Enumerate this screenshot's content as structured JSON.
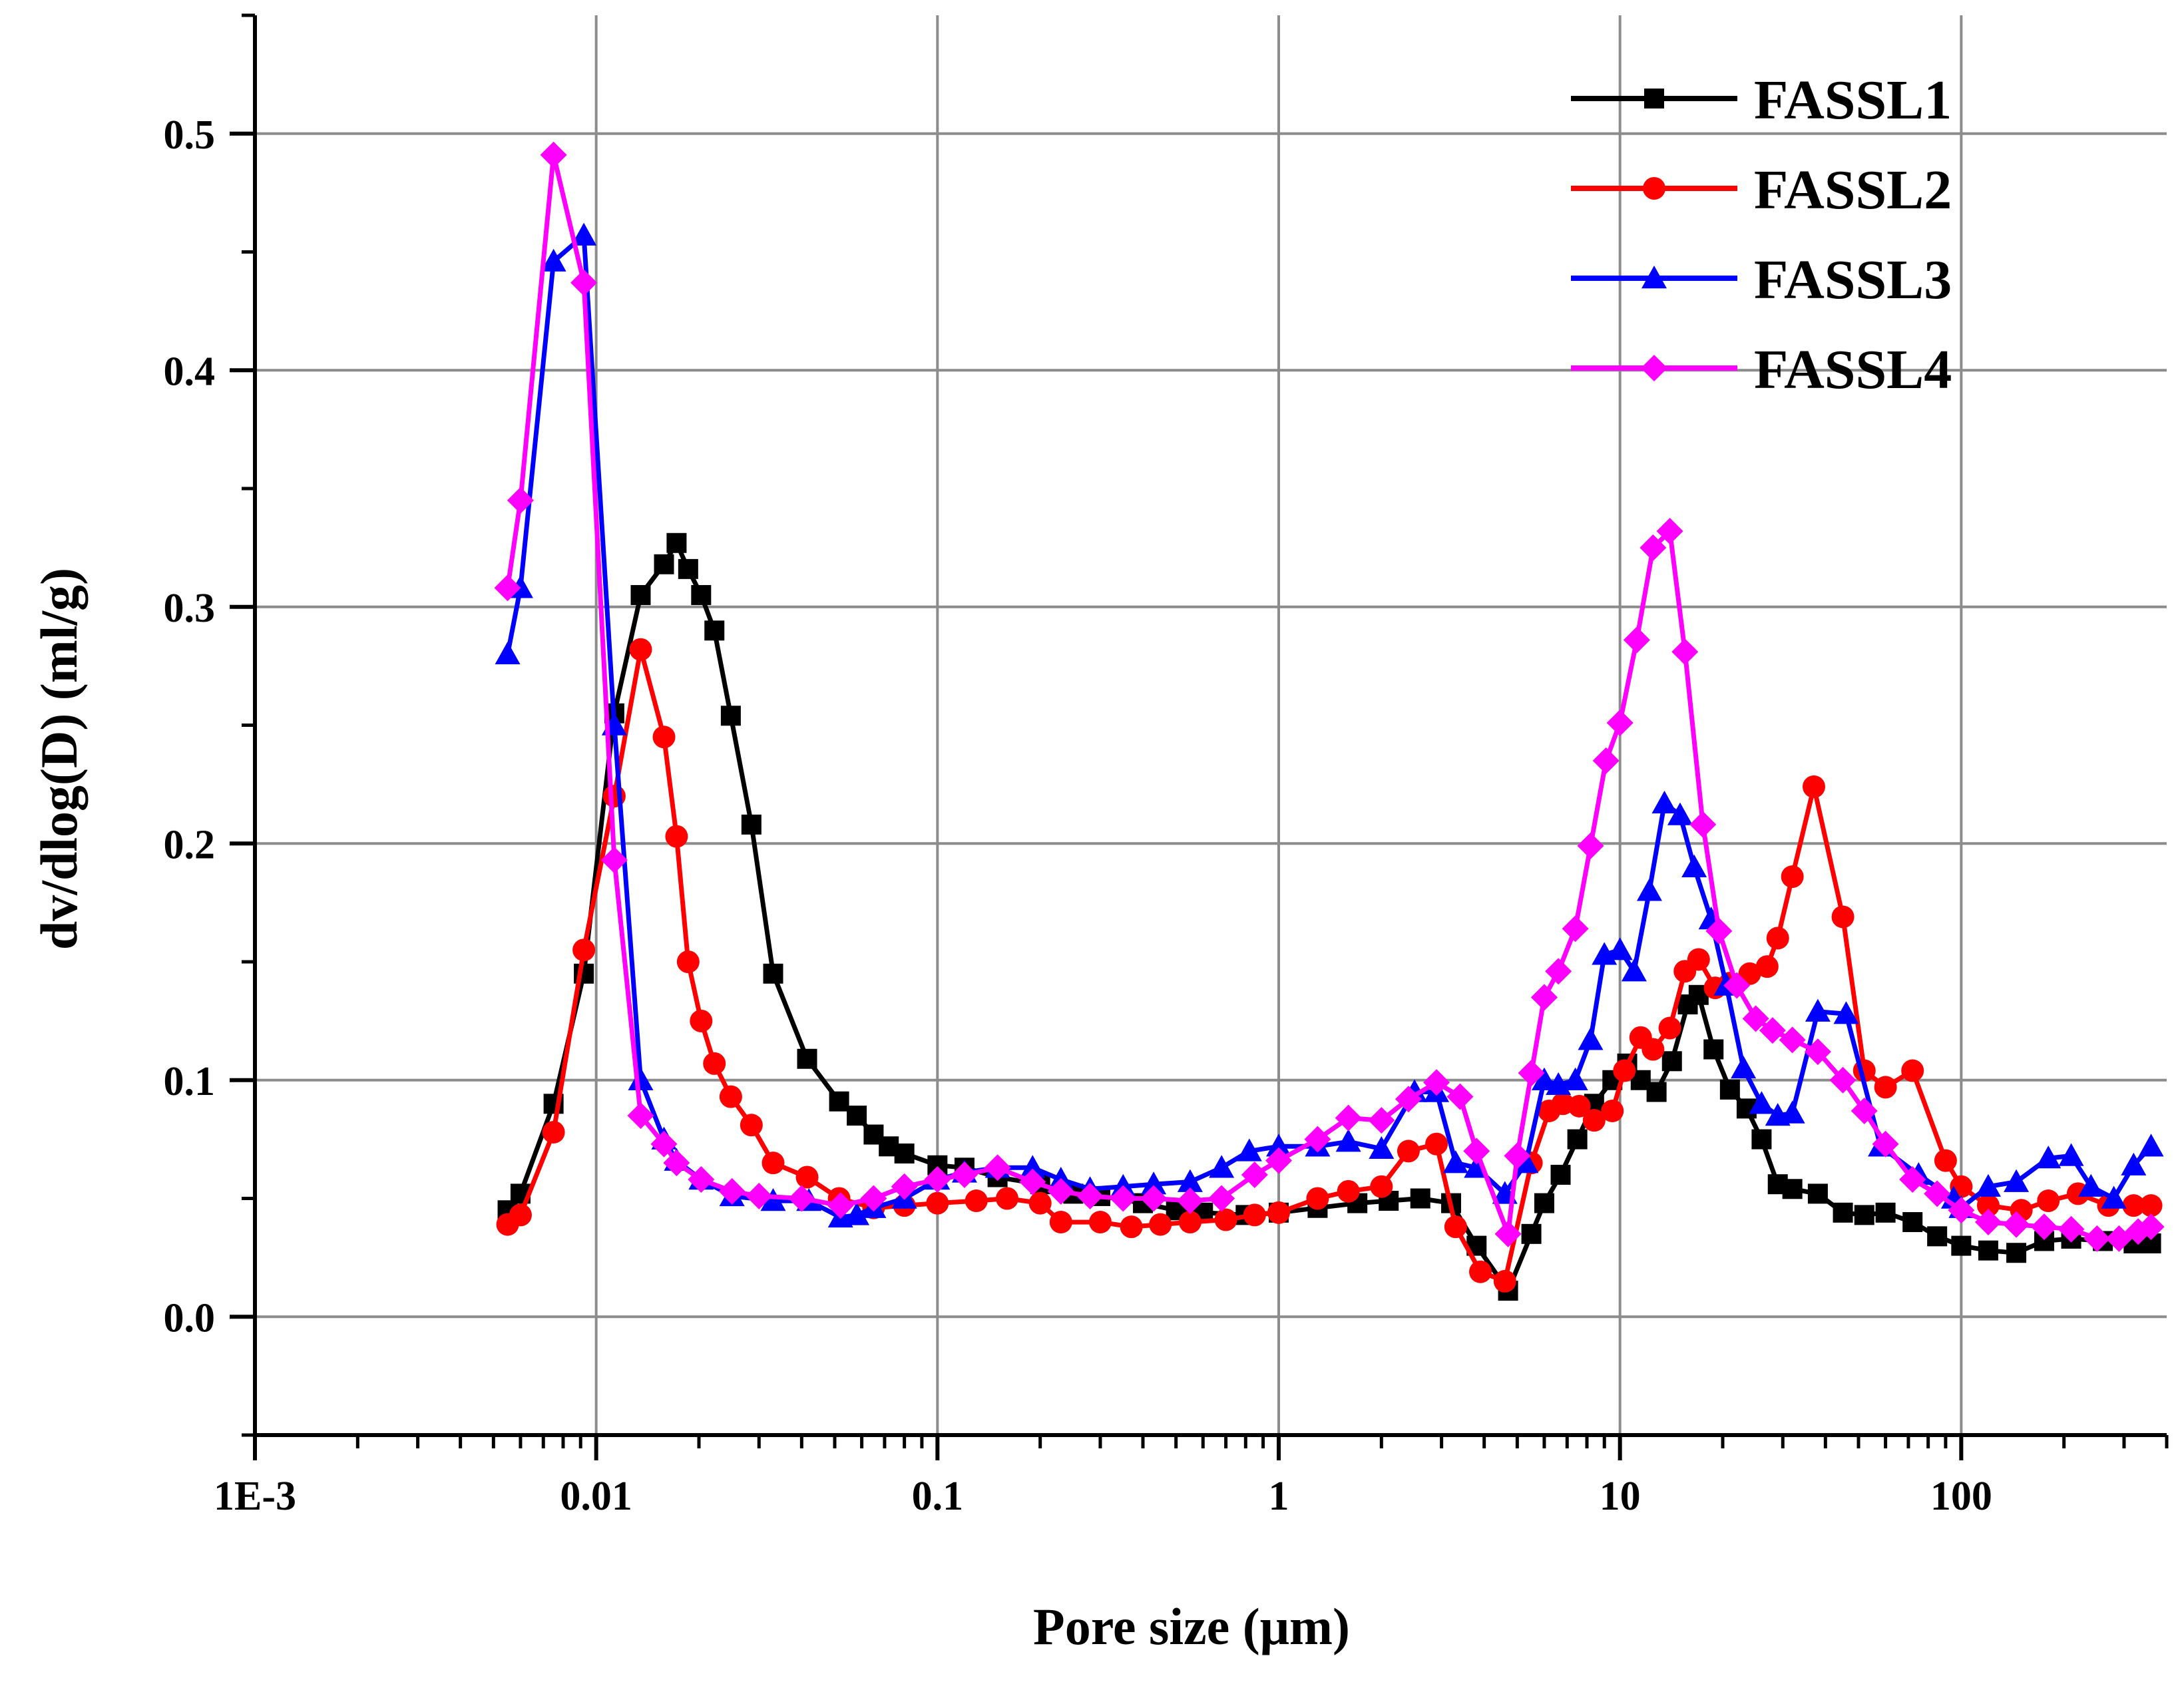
{
  "chart_data": {
    "type": "line",
    "title": "",
    "xlabel": "Pore size (μm)",
    "ylabel": "dv/dlog(D) (ml/g)",
    "x_scale": "log",
    "xlim": [
      0.001,
      400
    ],
    "ylim": [
      -0.05,
      0.55
    ],
    "x_ticks": [
      {
        "value": 0.001,
        "label": "1E-3"
      },
      {
        "value": 0.01,
        "label": "0.01"
      },
      {
        "value": 0.1,
        "label": "0.1"
      },
      {
        "value": 1,
        "label": "1"
      },
      {
        "value": 10,
        "label": "10"
      },
      {
        "value": 100,
        "label": "100"
      }
    ],
    "y_ticks": [
      {
        "value": 0.0,
        "label": "0.0"
      },
      {
        "value": 0.1,
        "label": "0.1"
      },
      {
        "value": 0.2,
        "label": "0.2"
      },
      {
        "value": 0.3,
        "label": "0.3"
      },
      {
        "value": 0.4,
        "label": "0.4"
      },
      {
        "value": 0.5,
        "label": "0.5"
      }
    ],
    "grid": true,
    "legend_position": "top-right",
    "series": [
      {
        "name": "FASSL1",
        "color": "#000000",
        "marker": "square",
        "points": [
          [
            0.0055,
            0.045
          ],
          [
            0.006,
            0.052
          ],
          [
            0.0075,
            0.09
          ],
          [
            0.0092,
            0.145
          ],
          [
            0.0113,
            0.255
          ],
          [
            0.0135,
            0.305
          ],
          [
            0.0158,
            0.318
          ],
          [
            0.0172,
            0.327
          ],
          [
            0.0186,
            0.316
          ],
          [
            0.0203,
            0.305
          ],
          [
            0.0222,
            0.29
          ],
          [
            0.0248,
            0.254
          ],
          [
            0.0285,
            0.208
          ],
          [
            0.033,
            0.145
          ],
          [
            0.0415,
            0.109
          ],
          [
            0.0515,
            0.091
          ],
          [
            0.058,
            0.085
          ],
          [
            0.065,
            0.077
          ],
          [
            0.072,
            0.072
          ],
          [
            0.08,
            0.069
          ],
          [
            0.1,
            0.064
          ],
          [
            0.12,
            0.063
          ],
          [
            0.15,
            0.059
          ],
          [
            0.2,
            0.056
          ],
          [
            0.25,
            0.052
          ],
          [
            0.3,
            0.051
          ],
          [
            0.4,
            0.048
          ],
          [
            0.5,
            0.045
          ],
          [
            0.6,
            0.044
          ],
          [
            0.8,
            0.043
          ],
          [
            1.0,
            0.044
          ],
          [
            1.3,
            0.046
          ],
          [
            1.7,
            0.048
          ],
          [
            2.1,
            0.049
          ],
          [
            2.6,
            0.05
          ],
          [
            3.2,
            0.048
          ],
          [
            3.8,
            0.03
          ],
          [
            4.7,
            0.011
          ],
          [
            5.5,
            0.035
          ],
          [
            6.0,
            0.048
          ],
          [
            6.7,
            0.06
          ],
          [
            7.5,
            0.075
          ],
          [
            8.4,
            0.09
          ],
          [
            9.5,
            0.1
          ],
          [
            10.5,
            0.107
          ],
          [
            11.5,
            0.1
          ],
          [
            12.8,
            0.095
          ],
          [
            14.2,
            0.108
          ],
          [
            15.8,
            0.132
          ],
          [
            17.0,
            0.136
          ],
          [
            18.8,
            0.113
          ],
          [
            21.0,
            0.096
          ],
          [
            23.5,
            0.088
          ],
          [
            26.0,
            0.075
          ],
          [
            29.0,
            0.056
          ],
          [
            32.0,
            0.054
          ],
          [
            38.0,
            0.052
          ],
          [
            45.0,
            0.044
          ],
          [
            52.0,
            0.043
          ],
          [
            60.0,
            0.044
          ],
          [
            72.0,
            0.04
          ],
          [
            85.0,
            0.034
          ],
          [
            100.0,
            0.03
          ],
          [
            120.0,
            0.028
          ],
          [
            145.0,
            0.027
          ],
          [
            175.0,
            0.032
          ],
          [
            210.0,
            0.033
          ],
          [
            260.0,
            0.032
          ],
          [
            320.0,
            0.031
          ],
          [
            360.0,
            0.031
          ]
        ]
      },
      {
        "name": "FASSL2",
        "color": "#ff0000",
        "marker": "circle",
        "points": [
          [
            0.0055,
            0.039
          ],
          [
            0.006,
            0.043
          ],
          [
            0.0075,
            0.078
          ],
          [
            0.0092,
            0.155
          ],
          [
            0.0113,
            0.22
          ],
          [
            0.0135,
            0.282
          ],
          [
            0.0158,
            0.245
          ],
          [
            0.0172,
            0.203
          ],
          [
            0.0186,
            0.15
          ],
          [
            0.0203,
            0.125
          ],
          [
            0.0222,
            0.107
          ],
          [
            0.0248,
            0.093
          ],
          [
            0.0285,
            0.081
          ],
          [
            0.033,
            0.065
          ],
          [
            0.0415,
            0.059
          ],
          [
            0.0515,
            0.05
          ],
          [
            0.065,
            0.046
          ],
          [
            0.08,
            0.047
          ],
          [
            0.1,
            0.048
          ],
          [
            0.13,
            0.049
          ],
          [
            0.16,
            0.05
          ],
          [
            0.2,
            0.048
          ],
          [
            0.23,
            0.04
          ],
          [
            0.3,
            0.04
          ],
          [
            0.37,
            0.038
          ],
          [
            0.45,
            0.039
          ],
          [
            0.55,
            0.04
          ],
          [
            0.7,
            0.041
          ],
          [
            0.85,
            0.043
          ],
          [
            1.0,
            0.044
          ],
          [
            1.3,
            0.05
          ],
          [
            1.6,
            0.053
          ],
          [
            2.0,
            0.055
          ],
          [
            2.4,
            0.07
          ],
          [
            2.9,
            0.073
          ],
          [
            3.3,
            0.038
          ],
          [
            3.9,
            0.019
          ],
          [
            4.6,
            0.015
          ],
          [
            5.5,
            0.065
          ],
          [
            6.2,
            0.087
          ],
          [
            6.8,
            0.09
          ],
          [
            7.6,
            0.089
          ],
          [
            8.4,
            0.083
          ],
          [
            9.5,
            0.087
          ],
          [
            10.3,
            0.104
          ],
          [
            11.5,
            0.118
          ],
          [
            12.5,
            0.113
          ],
          [
            14.0,
            0.122
          ],
          [
            15.5,
            0.146
          ],
          [
            17.0,
            0.151
          ],
          [
            19.0,
            0.139
          ],
          [
            21.0,
            0.141
          ],
          [
            24.0,
            0.145
          ],
          [
            27.0,
            0.148
          ],
          [
            29.0,
            0.16
          ],
          [
            32.0,
            0.186
          ],
          [
            37.0,
            0.224
          ],
          [
            45.0,
            0.169
          ],
          [
            52.0,
            0.104
          ],
          [
            60.0,
            0.097
          ],
          [
            72.0,
            0.104
          ],
          [
            90.0,
            0.066
          ],
          [
            100.0,
            0.055
          ],
          [
            120.0,
            0.047
          ],
          [
            150.0,
            0.045
          ],
          [
            180.0,
            0.049
          ],
          [
            220.0,
            0.052
          ],
          [
            270.0,
            0.047
          ],
          [
            320.0,
            0.047
          ],
          [
            360.0,
            0.047
          ]
        ]
      },
      {
        "name": "FASSL3",
        "color": "#0000ff",
        "marker": "triangle",
        "points": [
          [
            0.0055,
            0.28
          ],
          [
            0.006,
            0.308
          ],
          [
            0.0075,
            0.446
          ],
          [
            0.0092,
            0.457
          ],
          [
            0.0113,
            0.25
          ],
          [
            0.0135,
            0.1
          ],
          [
            0.0158,
            0.075
          ],
          [
            0.0172,
            0.066
          ],
          [
            0.0203,
            0.058
          ],
          [
            0.025,
            0.051
          ],
          [
            0.033,
            0.049
          ],
          [
            0.042,
            0.049
          ],
          [
            0.052,
            0.042
          ],
          [
            0.058,
            0.043
          ],
          [
            0.065,
            0.046
          ],
          [
            0.08,
            0.05
          ],
          [
            0.1,
            0.058
          ],
          [
            0.12,
            0.061
          ],
          [
            0.15,
            0.063
          ],
          [
            0.19,
            0.063
          ],
          [
            0.23,
            0.058
          ],
          [
            0.28,
            0.054
          ],
          [
            0.35,
            0.055
          ],
          [
            0.43,
            0.056
          ],
          [
            0.55,
            0.057
          ],
          [
            0.68,
            0.063
          ],
          [
            0.82,
            0.07
          ],
          [
            1.0,
            0.072
          ],
          [
            1.3,
            0.072
          ],
          [
            1.6,
            0.074
          ],
          [
            2.0,
            0.071
          ],
          [
            2.5,
            0.095
          ],
          [
            2.9,
            0.095
          ],
          [
            3.3,
            0.065
          ],
          [
            3.8,
            0.063
          ],
          [
            4.6,
            0.052
          ],
          [
            5.3,
            0.065
          ],
          [
            6.0,
            0.1
          ],
          [
            6.6,
            0.098
          ],
          [
            7.4,
            0.1
          ],
          [
            8.2,
            0.117
          ],
          [
            9.0,
            0.153
          ],
          [
            10.0,
            0.155
          ],
          [
            11.0,
            0.146
          ],
          [
            12.2,
            0.18
          ],
          [
            13.5,
            0.217
          ],
          [
            15.0,
            0.212
          ],
          [
            16.5,
            0.19
          ],
          [
            18.5,
            0.168
          ],
          [
            20.5,
            0.14
          ],
          [
            23.0,
            0.105
          ],
          [
            26.0,
            0.09
          ],
          [
            29.0,
            0.085
          ],
          [
            32.0,
            0.086
          ],
          [
            38.0,
            0.129
          ],
          [
            46.0,
            0.128
          ],
          [
            58.0,
            0.072
          ],
          [
            75.0,
            0.06
          ],
          [
            95.0,
            0.05
          ],
          [
            100.0,
            0.046
          ],
          [
            120.0,
            0.055
          ],
          [
            145.0,
            0.057
          ],
          [
            180.0,
            0.067
          ],
          [
            210.0,
            0.068
          ],
          [
            240.0,
            0.055
          ],
          [
            280.0,
            0.05
          ],
          [
            320.0,
            0.064
          ],
          [
            360.0,
            0.072
          ]
        ]
      },
      {
        "name": "FASSL4",
        "color": "#ff00ff",
        "marker": "diamond",
        "points": [
          [
            0.0055,
            0.308
          ],
          [
            0.006,
            0.345
          ],
          [
            0.0075,
            0.491
          ],
          [
            0.0092,
            0.437
          ],
          [
            0.0113,
            0.193
          ],
          [
            0.0135,
            0.085
          ],
          [
            0.0158,
            0.073
          ],
          [
            0.0172,
            0.065
          ],
          [
            0.0203,
            0.058
          ],
          [
            0.025,
            0.053
          ],
          [
            0.03,
            0.051
          ],
          [
            0.04,
            0.05
          ],
          [
            0.052,
            0.047
          ],
          [
            0.065,
            0.05
          ],
          [
            0.08,
            0.055
          ],
          [
            0.1,
            0.058
          ],
          [
            0.12,
            0.06
          ],
          [
            0.15,
            0.063
          ],
          [
            0.19,
            0.057
          ],
          [
            0.23,
            0.053
          ],
          [
            0.28,
            0.051
          ],
          [
            0.35,
            0.05
          ],
          [
            0.43,
            0.05
          ],
          [
            0.55,
            0.049
          ],
          [
            0.68,
            0.05
          ],
          [
            0.85,
            0.06
          ],
          [
            1.0,
            0.066
          ],
          [
            1.3,
            0.075
          ],
          [
            1.6,
            0.084
          ],
          [
            2.0,
            0.083
          ],
          [
            2.4,
            0.092
          ],
          [
            2.9,
            0.099
          ],
          [
            3.4,
            0.093
          ],
          [
            3.8,
            0.07
          ],
          [
            4.7,
            0.035
          ],
          [
            5.0,
            0.068
          ],
          [
            5.5,
            0.103
          ],
          [
            6.0,
            0.135
          ],
          [
            6.6,
            0.146
          ],
          [
            7.4,
            0.164
          ],
          [
            8.2,
            0.199
          ],
          [
            9.1,
            0.235
          ],
          [
            10.0,
            0.251
          ],
          [
            11.2,
            0.286
          ],
          [
            12.5,
            0.325
          ],
          [
            14.0,
            0.332
          ],
          [
            15.5,
            0.281
          ],
          [
            17.5,
            0.208
          ],
          [
            19.5,
            0.163
          ],
          [
            22.0,
            0.14
          ],
          [
            25.0,
            0.126
          ],
          [
            28.0,
            0.121
          ],
          [
            32.0,
            0.117
          ],
          [
            38.0,
            0.112
          ],
          [
            45.0,
            0.1
          ],
          [
            52.0,
            0.087
          ],
          [
            60.0,
            0.073
          ],
          [
            72.0,
            0.058
          ],
          [
            85.0,
            0.052
          ],
          [
            100.0,
            0.045
          ],
          [
            120.0,
            0.04
          ],
          [
            145.0,
            0.039
          ],
          [
            175.0,
            0.038
          ],
          [
            210.0,
            0.037
          ],
          [
            250.0,
            0.033
          ],
          [
            290.0,
            0.033
          ],
          [
            330.0,
            0.036
          ],
          [
            360.0,
            0.038
          ]
        ]
      }
    ]
  }
}
